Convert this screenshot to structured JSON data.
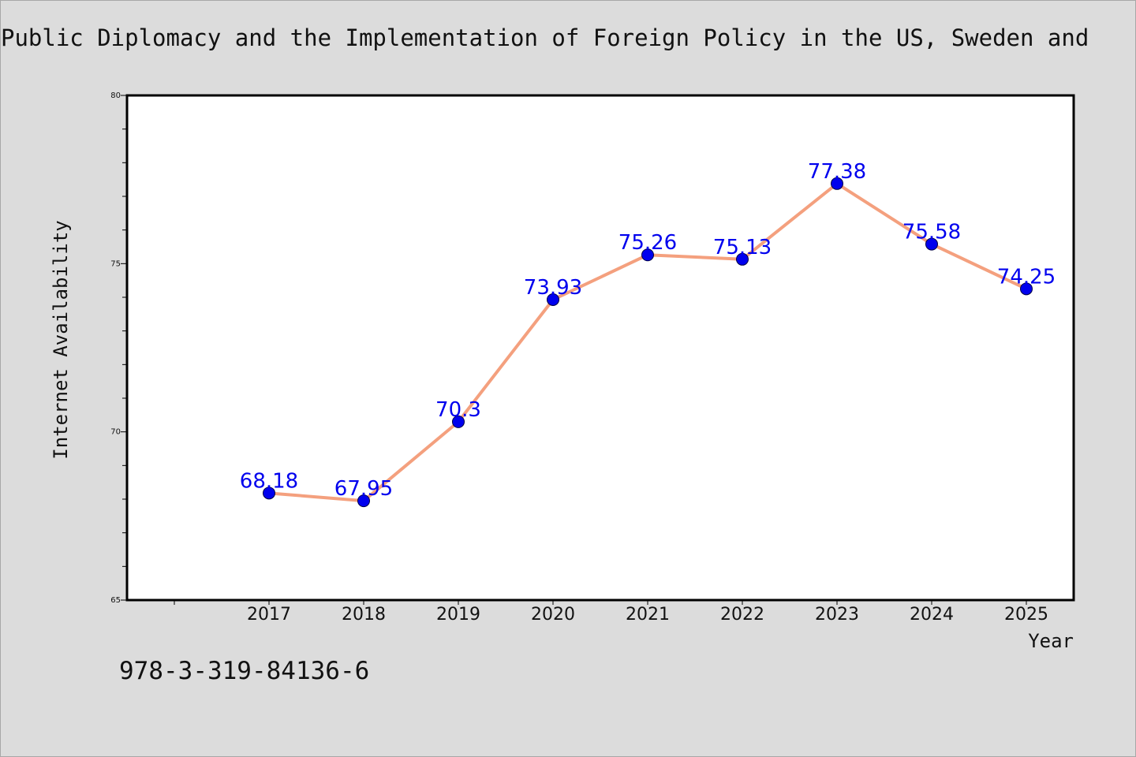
{
  "title": "Public Diplomacy and the Implementation of Foreign Policy in the US, Sweden and",
  "footer_code": "978-3-319-84136-6",
  "colors": {
    "background": "#dcdcdc",
    "plot_background": "#ffffff",
    "line": "#f4a07e",
    "marker": "#0000ee",
    "data_label": "#0000ee"
  },
  "chart_data": {
    "type": "line",
    "x": [
      "2017",
      "2018",
      "2019",
      "2020",
      "2021",
      "2022",
      "2023",
      "2024",
      "2025"
    ],
    "series": [
      {
        "values": [
          68.18,
          67.95,
          70.3,
          73.93,
          75.26,
          75.13,
          77.38,
          75.58,
          74.25
        ],
        "labels": [
          "68.18",
          "67.95",
          "70.3",
          "73.93",
          "75.26",
          "75.13",
          "77.38",
          "75.58",
          "74.25"
        ]
      }
    ],
    "xlabel": "Year",
    "ylabel": "Internet Availability",
    "ylim": [
      65,
      80
    ],
    "yticks": [
      "65",
      "70",
      "75",
      "80"
    ],
    "grid": false,
    "legend": "none"
  }
}
